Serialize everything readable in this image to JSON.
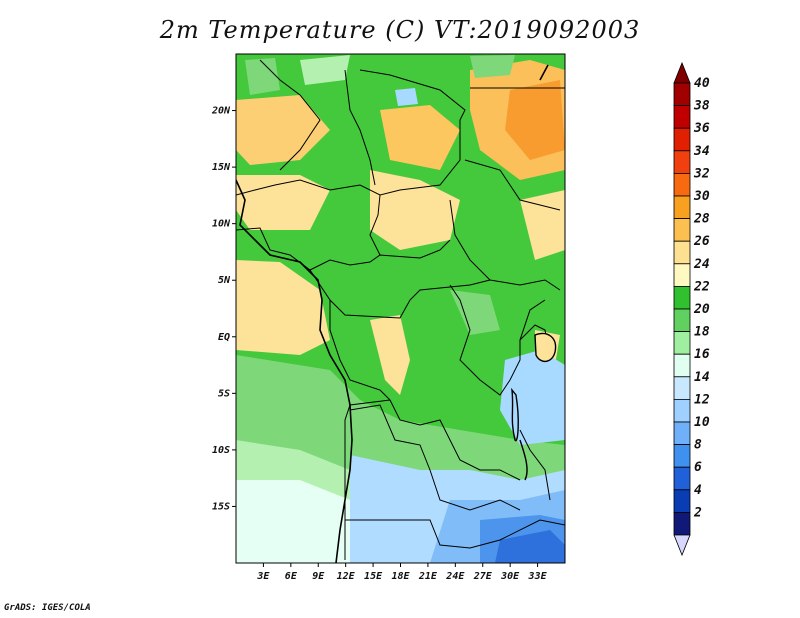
{
  "title": "2m Temperature (C) VT:2019092003",
  "credit": "GrADS: IGES/COLA",
  "map": {
    "lon_range": [
      0,
      36
    ],
    "lat_range": [
      -20,
      25
    ],
    "lon_ticks": [
      "3E",
      "6E",
      "9E",
      "12E",
      "15E",
      "18E",
      "21E",
      "24E",
      "27E",
      "30E",
      "33E"
    ],
    "lat_ticks": [
      "20N",
      "15N",
      "10N",
      "5N",
      "EQ",
      "5S",
      "10S",
      "15S"
    ]
  },
  "colorbar": {
    "labels": [
      "40",
      "38",
      "36",
      "34",
      "32",
      "30",
      "28",
      "26",
      "24",
      "22",
      "20",
      "18",
      "16",
      "14",
      "12",
      "10",
      "8",
      "6",
      "4",
      "2"
    ],
    "colors": [
      "#a00000",
      "#c00000",
      "#e02000",
      "#f04010",
      "#f86a10",
      "#f8a020",
      "#fcc050",
      "#fde090",
      "#fff8c0",
      "#30c030",
      "#60d060",
      "#a0eea0",
      "#e0fff0",
      "#c8e8ff",
      "#a0d0ff",
      "#70b0f8",
      "#4090f0",
      "#2060d8",
      "#0a3cb4",
      "#101878"
    ],
    "top_arrow_color": "#800000",
    "bottom_arrow_color": "#d8d8ff"
  }
}
